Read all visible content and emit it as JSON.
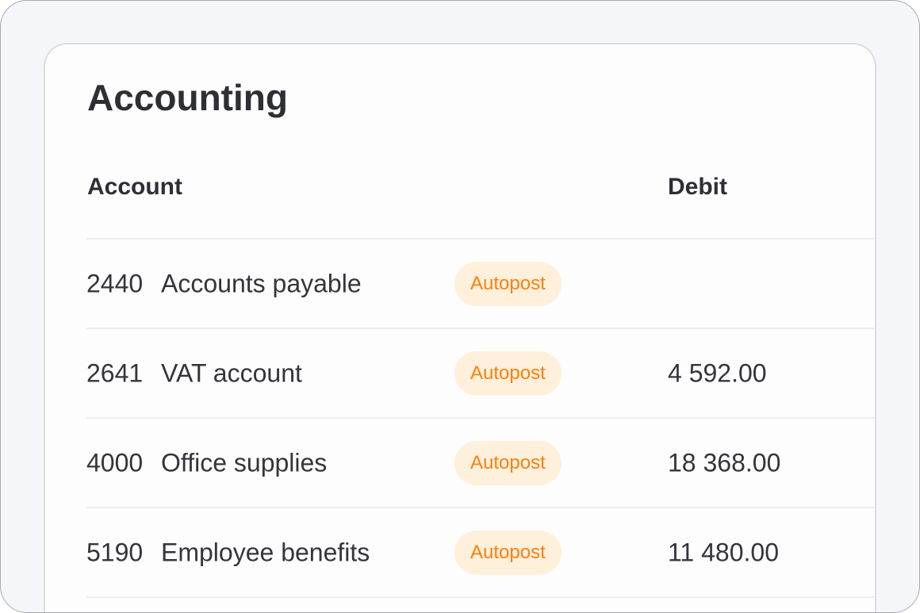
{
  "title": "Accounting",
  "columns": {
    "account": "Account",
    "debit": "Debit"
  },
  "rows": [
    {
      "number": "2440",
      "name": "Accounts payable",
      "badge": "Autopost",
      "debit": ""
    },
    {
      "number": "2641",
      "name": "VAT account",
      "badge": "Autopost",
      "debit": "4 592.00"
    },
    {
      "number": "4000",
      "name": "Office supplies",
      "badge": "Autopost",
      "debit": "18 368.00"
    },
    {
      "number": "5190",
      "name": "Employee benefits",
      "badge": "Autopost",
      "debit": "11 480.00"
    }
  ],
  "colors": {
    "badge_text": "#ff7f0a",
    "badge_bg": "#fff0dc"
  }
}
